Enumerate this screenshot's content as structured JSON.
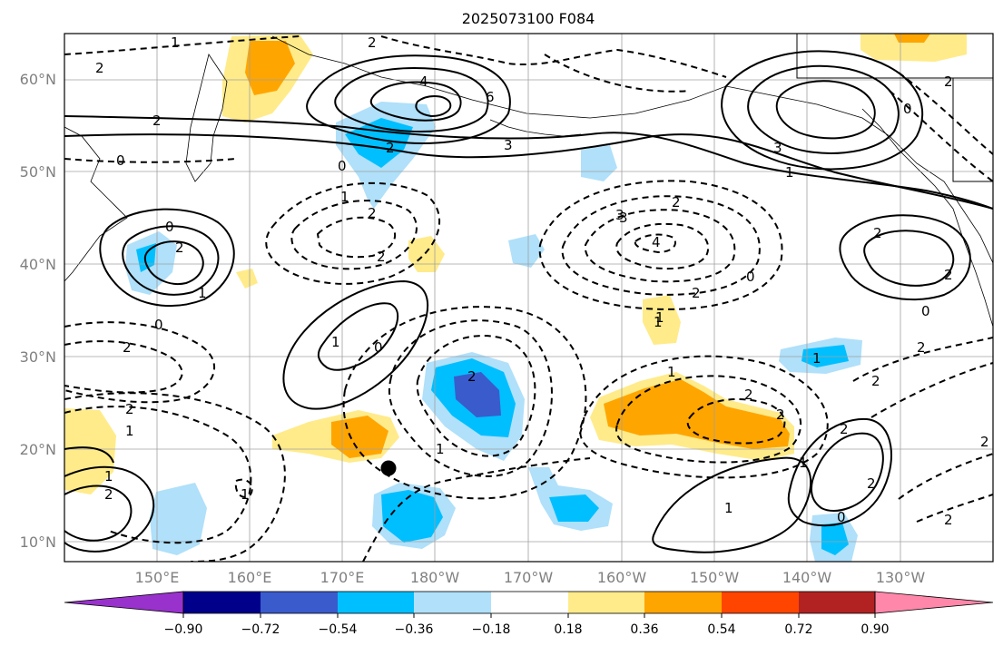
{
  "title": "2025073100 F084",
  "map": {
    "lat_labels": [
      "60°N",
      "50°N",
      "40°N",
      "30°N",
      "20°N",
      "10°N"
    ],
    "lon_labels": [
      "150°E",
      "160°E",
      "170°E",
      "180°W",
      "170°W",
      "160°W",
      "150°W",
      "140°W",
      "130°W"
    ],
    "marker": "storm-position-dot"
  },
  "colorbar": {
    "colors": [
      "#9932cc",
      "#00008b",
      "#3a5bcc",
      "#00bfff",
      "#b0e0fa",
      "#ffffff",
      "#ffeb8a",
      "#ffa500",
      "#ff4500",
      "#b22222",
      "#ff88aa"
    ],
    "tick_labels": [
      "−0.90",
      "−0.72",
      "−0.54",
      "−0.36",
      "−0.18",
      "0.18",
      "0.36",
      "0.54",
      "0.72",
      "0.90"
    ]
  },
  "contour_labels": [
    "2",
    "2",
    "2",
    "1",
    "0",
    "0",
    "2",
    "3",
    "4",
    "6",
    "3",
    "2",
    "1",
    "0",
    "3",
    "1",
    "0",
    "1",
    "2",
    "2",
    "2",
    "2",
    "3",
    "4",
    "2",
    "0",
    "1",
    "2",
    "2",
    "0",
    "2",
    "2",
    "1",
    "0",
    "1",
    "2",
    "1",
    "2",
    "1",
    "1",
    "1",
    "2",
    "1",
    "2",
    "2",
    "2",
    "2",
    "2",
    "1",
    "0",
    "1",
    "2",
    "2",
    "0",
    "1"
  ]
}
